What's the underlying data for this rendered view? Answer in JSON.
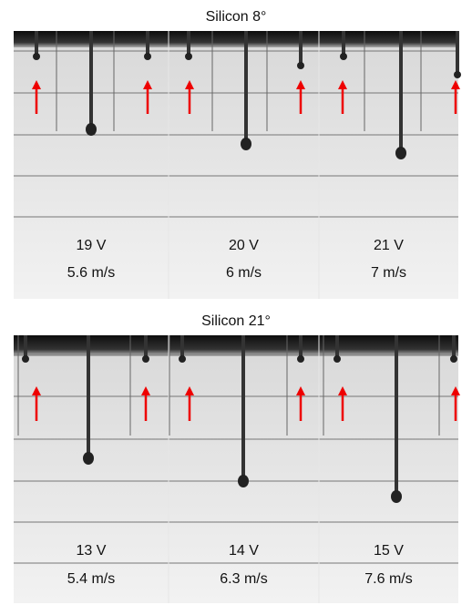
{
  "figures": [
    {
      "title": "Silicon 8°",
      "panels": [
        {
          "voltage": "19 V",
          "speed": "5.6 m/s"
        },
        {
          "voltage": "20 V",
          "speed": "6 m/s"
        },
        {
          "voltage": "21 V",
          "speed": "7 m/s"
        }
      ]
    },
    {
      "title": "Silicon 21°",
      "panels": [
        {
          "voltage": "13 V",
          "speed": "5.4 m/s"
        },
        {
          "voltage": "14 V",
          "speed": "6.3 m/s"
        },
        {
          "voltage": "15 V",
          "speed": "7.6 m/s"
        }
      ]
    }
  ]
}
